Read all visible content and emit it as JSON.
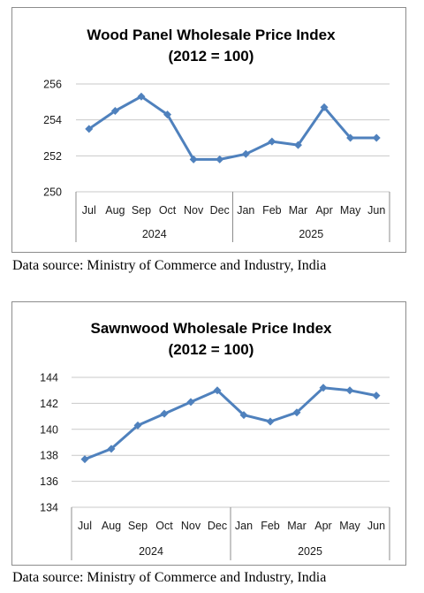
{
  "chart_data": [
    {
      "type": "line",
      "title": "Wood Panel Wholesale Price Index",
      "subtitle": "(2012 = 100)",
      "categories": [
        "Jul",
        "Aug",
        "Sep",
        "Oct",
        "Nov",
        "Dec",
        "Jan",
        "Feb",
        "Mar",
        "Apr",
        "May",
        "Jun"
      ],
      "year_groups": [
        {
          "label": "2024",
          "count": 6
        },
        {
          "label": "2025",
          "count": 6
        }
      ],
      "series": [
        {
          "values": [
            253.5,
            254.5,
            255.3,
            254.3,
            251.8,
            251.8,
            252.1,
            252.8,
            252.6,
            254.7,
            253.0,
            253.0
          ],
          "color": "#4f81bd"
        }
      ],
      "ylim": [
        250,
        256
      ],
      "yticks": [
        250,
        252,
        254,
        256
      ],
      "grid": true,
      "xlabel": "",
      "ylabel": ""
    },
    {
      "type": "line",
      "title": "Sawnwood Wholesale Price Index",
      "subtitle": "(2012 = 100)",
      "categories": [
        "Jul",
        "Aug",
        "Sep",
        "Oct",
        "Nov",
        "Dec",
        "Jan",
        "Feb",
        "Mar",
        "Apr",
        "May",
        "Jun"
      ],
      "year_groups": [
        {
          "label": "2024",
          "count": 6
        },
        {
          "label": "2025",
          "count": 6
        }
      ],
      "series": [
        {
          "values": [
            137.7,
            138.5,
            140.3,
            141.2,
            142.1,
            143.0,
            141.1,
            140.6,
            141.3,
            143.2,
            143.0,
            142.6
          ],
          "color": "#4f81bd"
        }
      ],
      "ylim": [
        134,
        144
      ],
      "yticks": [
        134,
        136,
        138,
        140,
        142,
        144
      ],
      "grid": true,
      "xlabel": "",
      "ylabel": ""
    }
  ],
  "notes": {
    "source_1": "Data source: Ministry of Commerce and Industry, India",
    "source_2": "Data source: Ministry of Commerce and Industry, India"
  }
}
